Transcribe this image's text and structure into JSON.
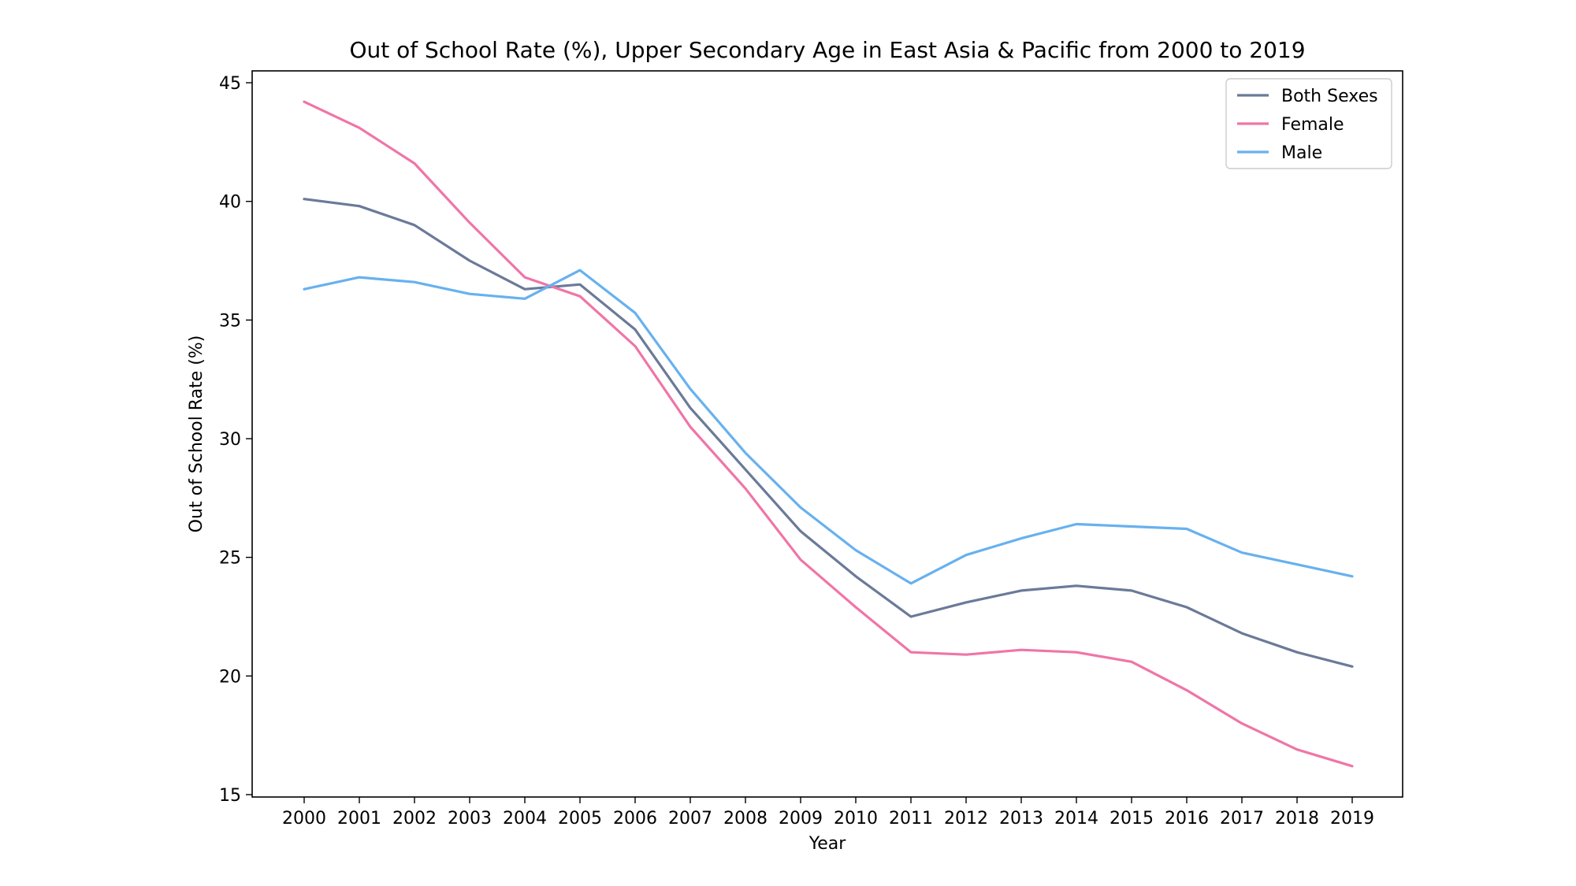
{
  "chart_data": {
    "type": "line",
    "title": "Out of School Rate (%), Upper Secondary Age in East Asia & Pacific from 2000 to 2019",
    "xlabel": "Year",
    "ylabel": "Out of School Rate (%)",
    "x": [
      "2000",
      "2001",
      "2002",
      "2003",
      "2004",
      "2005",
      "2006",
      "2007",
      "2008",
      "2009",
      "2010",
      "2011",
      "2012",
      "2013",
      "2014",
      "2015",
      "2016",
      "2017",
      "2018",
      "2019"
    ],
    "ylim": [
      14.9,
      45.5
    ],
    "yticks": [
      "15",
      "20",
      "25",
      "30",
      "35",
      "40",
      "45"
    ],
    "grid": false,
    "legend_position": "top-right",
    "series": [
      {
        "name": "Both Sexes",
        "color": "#6b7a99",
        "values": [
          40.1,
          39.8,
          39.0,
          37.5,
          36.3,
          36.5,
          34.6,
          31.3,
          28.7,
          26.1,
          24.2,
          22.5,
          23.1,
          23.6,
          23.8,
          23.6,
          22.9,
          21.8,
          21.0,
          20.4
        ]
      },
      {
        "name": "Female",
        "color": "#f075a6",
        "values": [
          44.2,
          43.1,
          41.6,
          39.1,
          36.8,
          36.0,
          33.9,
          30.5,
          27.9,
          24.9,
          22.9,
          21.0,
          20.9,
          21.1,
          21.0,
          20.6,
          19.4,
          18.0,
          16.9,
          16.2
        ]
      },
      {
        "name": "Male",
        "color": "#67b1ef",
        "values": [
          36.3,
          36.8,
          36.6,
          36.1,
          35.9,
          37.1,
          35.3,
          32.1,
          29.4,
          27.1,
          25.3,
          23.9,
          25.1,
          25.8,
          26.4,
          26.3,
          26.2,
          25.2,
          24.7,
          24.2
        ]
      }
    ]
  }
}
